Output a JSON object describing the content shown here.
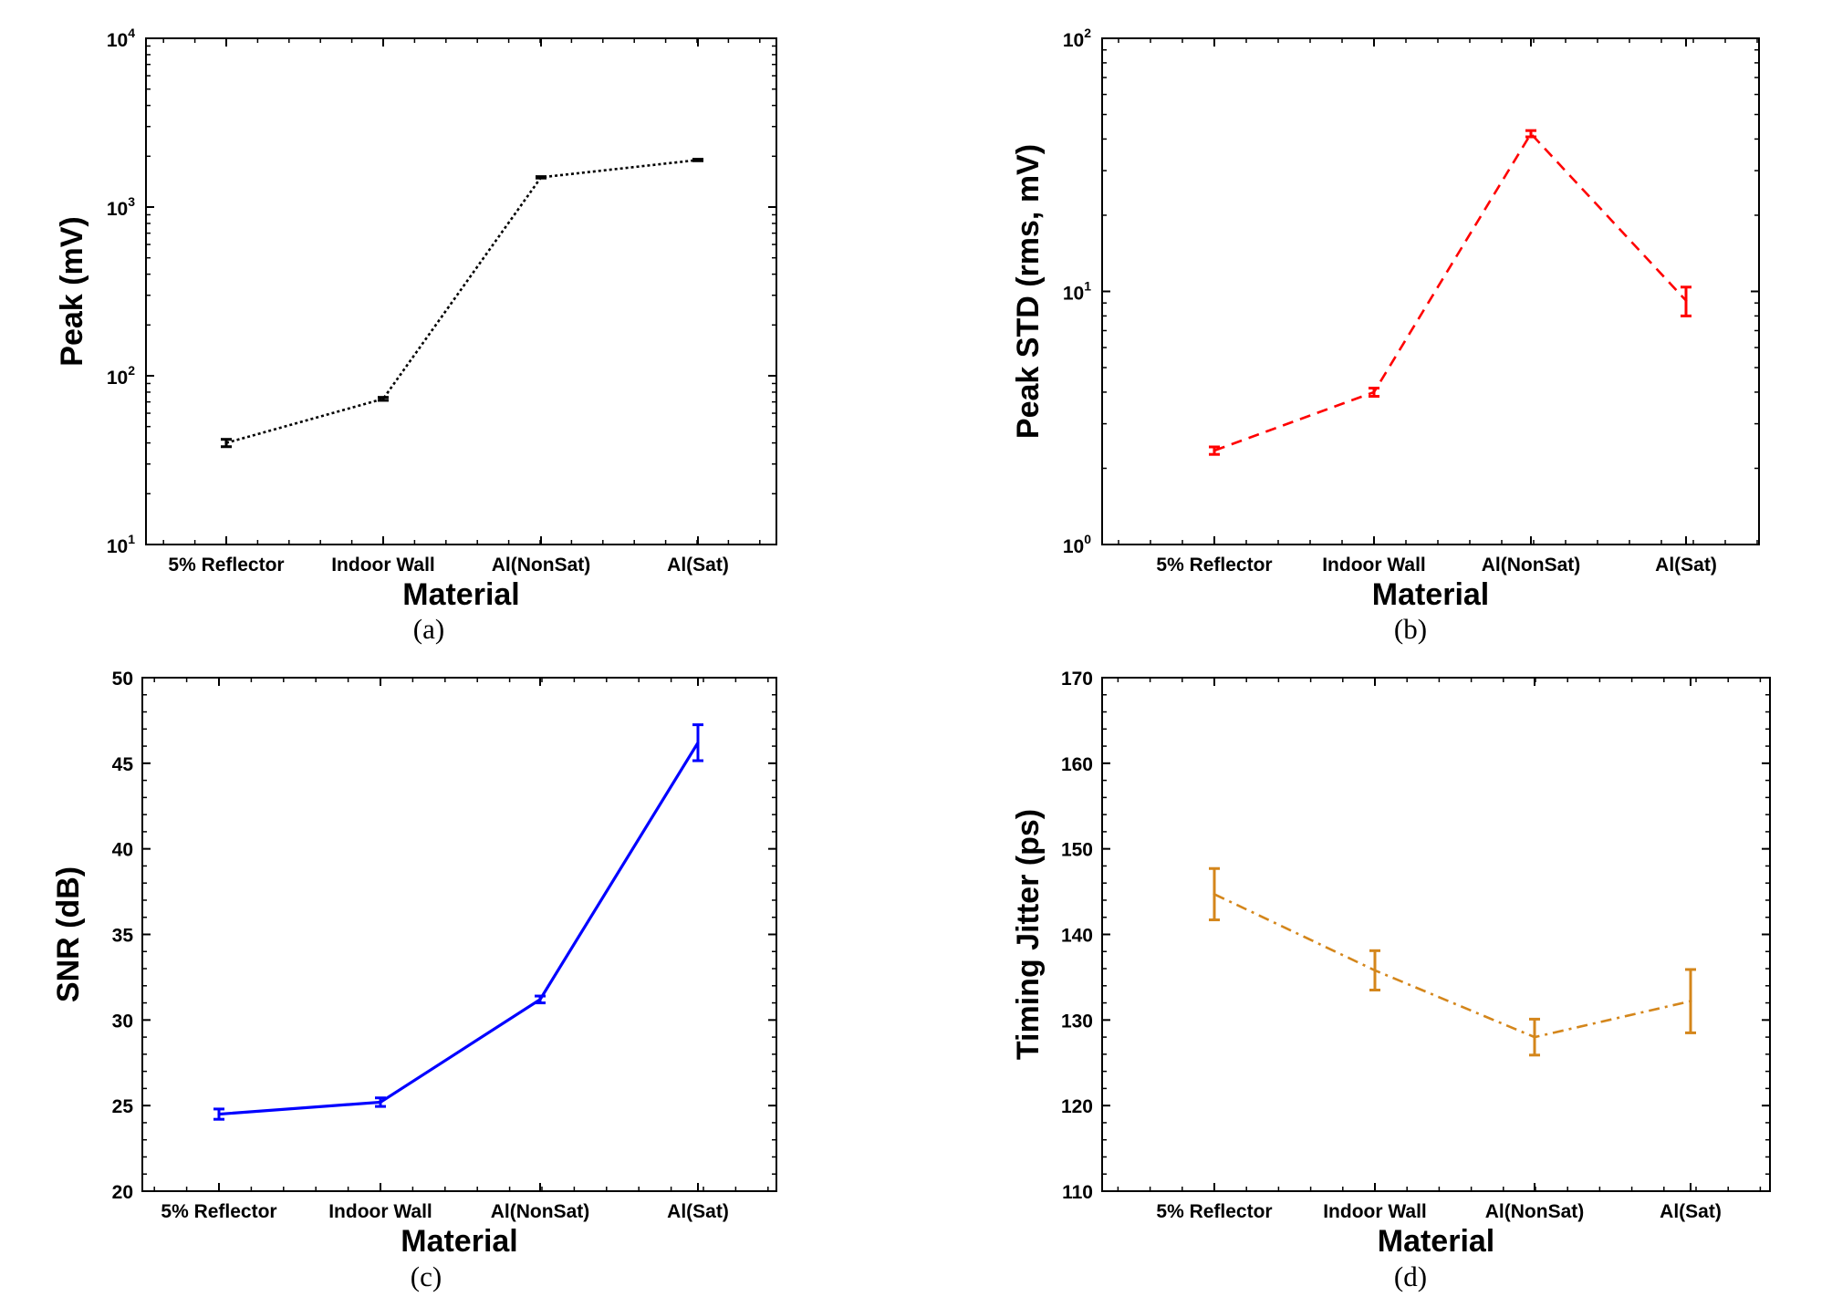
{
  "chart_data": [
    {
      "panel": "(a)",
      "type": "line",
      "yscale": "log",
      "ylim": [
        10,
        10000
      ],
      "yticks": [
        10,
        100,
        1000,
        10000
      ],
      "ytick_labels": [
        {
          "base": "10",
          "exp": "1"
        },
        {
          "base": "10",
          "exp": "2"
        },
        {
          "base": "10",
          "exp": "3"
        },
        {
          "base": "10",
          "exp": "4"
        }
      ],
      "xlabel": "Material",
      "ylabel": "Peak (mV)",
      "categories": [
        "5% Reflector",
        "Indoor Wall",
        "Al(NonSat)",
        "Al(Sat)"
      ],
      "series": [
        {
          "values": [
            40,
            73,
            1500,
            1900
          ],
          "err": [
            2,
            1.5,
            15,
            20
          ]
        }
      ],
      "line_style": "dotted",
      "color": "#000000",
      "grid": false,
      "legend": "none"
    },
    {
      "panel": "(b)",
      "type": "line",
      "yscale": "log",
      "ylim": [
        1,
        100
      ],
      "yticks": [
        1,
        10,
        100
      ],
      "ytick_labels": [
        {
          "base": "10",
          "exp": "0"
        },
        {
          "base": "10",
          "exp": "1"
        },
        {
          "base": "10",
          "exp": "2"
        }
      ],
      "xlabel": "Material",
      "ylabel": "Peak STD (rms, mV)",
      "categories": [
        "5% Reflector",
        "Indoor Wall",
        "Al(NonSat)",
        "Al(Sat)"
      ],
      "series": [
        {
          "values": [
            2.35,
            4.0,
            42,
            9.2
          ],
          "err": [
            0.08,
            0.15,
            1.2,
            1.2
          ]
        }
      ],
      "line_style": "dashed",
      "color": "#ff0000",
      "grid": false,
      "legend": "none"
    },
    {
      "panel": "(c)",
      "type": "line",
      "yscale": "linear",
      "ylim": [
        20,
        50
      ],
      "yticks": [
        20,
        25,
        30,
        35,
        40,
        45,
        50
      ],
      "ytick_labels": [
        "20",
        "25",
        "30",
        "35",
        "40",
        "45",
        "50"
      ],
      "xlabel": "Material",
      "ylabel": "SNR (dB)",
      "categories": [
        "5% Reflector",
        "Indoor Wall",
        "Al(NonSat)",
        "Al(Sat)"
      ],
      "series": [
        {
          "values": [
            24.5,
            25.2,
            31.2,
            46.2
          ],
          "err": [
            0.3,
            0.25,
            0.2,
            1.05
          ]
        }
      ],
      "line_style": "solid",
      "color": "#0000ff",
      "grid": false,
      "legend": "none"
    },
    {
      "panel": "(d)",
      "type": "line",
      "yscale": "linear",
      "ylim": [
        110,
        170
      ],
      "yticks": [
        110,
        120,
        130,
        140,
        150,
        160,
        170
      ],
      "ytick_labels": [
        "110",
        "120",
        "130",
        "140",
        "150",
        "160",
        "170"
      ],
      "xlabel": "Material",
      "ylabel": "Timing Jitter (ps)",
      "categories": [
        "5% Reflector",
        "Indoor Wall",
        "Al(NonSat)",
        "Al(Sat)"
      ],
      "series": [
        {
          "values": [
            144.7,
            135.8,
            128.0,
            132.2
          ],
          "err": [
            3.0,
            2.3,
            2.1,
            3.7
          ]
        }
      ],
      "line_style": "dashdot",
      "color": "#d4861b",
      "grid": false,
      "legend": "none"
    }
  ]
}
